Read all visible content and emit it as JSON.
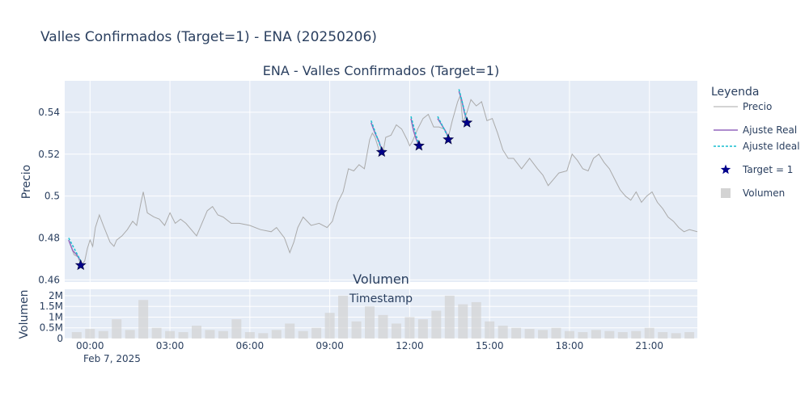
{
  "figure_title": "Valles Confirmados (Target=1) - ENA (20250206)",
  "colors": {
    "price": "#aaaaaa",
    "fit_real": "#9467bd",
    "fit_ideal": "#17becf",
    "target": "#00008b",
    "volume": "#d3d3d3",
    "plot_bg": "#e5ecf6",
    "grid": "#ffffff"
  },
  "legend": {
    "title": "Leyenda",
    "placement": "right",
    "items": [
      {
        "label": "Precio",
        "symbol": "line-gray"
      },
      {
        "label": "Ajuste Real",
        "symbol": "line-purple"
      },
      {
        "label": "Ajuste Ideal",
        "symbol": "dash-cyan"
      },
      {
        "label": "Target = 1",
        "symbol": "star-darkblue"
      },
      {
        "label": "Volumen",
        "symbol": "square-lightgray"
      }
    ]
  },
  "chart_data": [
    {
      "type": "line",
      "title": "ENA - Valles Confirmados (Target=1)",
      "xlabel": "",
      "ylabel": "Precio",
      "grid": true,
      "x_ticks": [
        "00:00",
        "03:00",
        "06:00",
        "09:00",
        "12:00",
        "15:00",
        "18:00",
        "21:00"
      ],
      "x_date_label": "Feb 7, 2025",
      "xlim_hours": [
        -0.95,
        22.8
      ],
      "ylim": [
        0.459,
        0.555
      ],
      "y_ticks": [
        0.46,
        0.48,
        0.5,
        0.52,
        0.54
      ],
      "y_tick_labels": [
        "0.46",
        "0.48",
        "0.5",
        "0.52",
        "0.54"
      ],
      "series": [
        {
          "name": "Precio",
          "x_hours": [
            -0.8,
            -0.6,
            -0.45,
            -0.35,
            -0.2,
            -0.1,
            0.0,
            0.1,
            0.2,
            0.35,
            0.5,
            0.75,
            0.9,
            1.0,
            1.2,
            1.4,
            1.6,
            1.75,
            1.9,
            2.0,
            2.15,
            2.4,
            2.6,
            2.8,
            3.0,
            3.2,
            3.4,
            3.6,
            3.8,
            4.0,
            4.2,
            4.4,
            4.6,
            4.8,
            5.0,
            5.3,
            5.6,
            6.0,
            6.4,
            6.8,
            7.0,
            7.3,
            7.5,
            7.65,
            7.8,
            8.0,
            8.3,
            8.6,
            8.9,
            9.1,
            9.3,
            9.5,
            9.7,
            9.9,
            10.1,
            10.3,
            10.5,
            10.6,
            10.7,
            10.85,
            11.0,
            11.1,
            11.3,
            11.5,
            11.7,
            11.9,
            12.0,
            12.1,
            12.3,
            12.5,
            12.7,
            12.9,
            13.1,
            13.3,
            13.45,
            13.6,
            13.8,
            13.9,
            14.0,
            14.15,
            14.3,
            14.5,
            14.7,
            14.9,
            15.1,
            15.3,
            15.5,
            15.7,
            15.9,
            16.2,
            16.5,
            16.8,
            17.0,
            17.2,
            17.4,
            17.6,
            17.9,
            18.1,
            18.3,
            18.5,
            18.7,
            18.9,
            19.1,
            19.3,
            19.5,
            19.7,
            19.9,
            20.1,
            20.3,
            20.5,
            20.7,
            20.9,
            21.1,
            21.3,
            21.5,
            21.7,
            21.9,
            22.1,
            22.3,
            22.5,
            22.8
          ],
          "y": [
            0.479,
            0.472,
            0.471,
            0.467,
            0.469,
            0.475,
            0.479,
            0.476,
            0.485,
            0.491,
            0.486,
            0.478,
            0.476,
            0.479,
            0.481,
            0.484,
            0.488,
            0.486,
            0.496,
            0.502,
            0.492,
            0.49,
            0.489,
            0.486,
            0.492,
            0.487,
            0.489,
            0.487,
            0.484,
            0.481,
            0.487,
            0.493,
            0.495,
            0.491,
            0.49,
            0.487,
            0.487,
            0.486,
            0.484,
            0.483,
            0.485,
            0.48,
            0.473,
            0.478,
            0.485,
            0.49,
            0.486,
            0.487,
            0.485,
            0.488,
            0.497,
            0.502,
            0.513,
            0.512,
            0.515,
            0.513,
            0.527,
            0.53,
            0.528,
            0.522,
            0.521,
            0.528,
            0.529,
            0.534,
            0.532,
            0.527,
            0.524,
            0.526,
            0.532,
            0.537,
            0.539,
            0.533,
            0.533,
            0.532,
            0.528,
            0.536,
            0.545,
            0.548,
            0.535,
            0.54,
            0.546,
            0.543,
            0.545,
            0.536,
            0.537,
            0.53,
            0.522,
            0.518,
            0.518,
            0.513,
            0.518,
            0.513,
            0.51,
            0.505,
            0.508,
            0.511,
            0.512,
            0.52,
            0.517,
            0.513,
            0.512,
            0.518,
            0.52,
            0.516,
            0.513,
            0.508,
            0.503,
            0.5,
            0.498,
            0.502,
            0.497,
            0.5,
            0.502,
            0.497,
            0.494,
            0.49,
            0.488,
            0.485,
            0.483,
            0.484,
            0.483
          ]
        },
        {
          "name": "Ajuste Real",
          "segments": [
            {
              "x_hours": [
                -0.8,
                -0.65,
                -0.5,
                -0.35
              ],
              "y": [
                0.479,
                0.474,
                0.472,
                0.469
              ]
            },
            {
              "x_hours": [
                10.55,
                10.7,
                10.85,
                10.95
              ],
              "y": [
                0.535,
                0.53,
                0.526,
                0.522
              ]
            },
            {
              "x_hours": [
                12.05,
                12.15,
                12.25,
                12.35
              ],
              "y": [
                0.537,
                0.531,
                0.527,
                0.524
              ]
            },
            {
              "x_hours": [
                13.05,
                13.2,
                13.35,
                13.45
              ],
              "y": [
                0.537,
                0.534,
                0.531,
                0.528
              ]
            },
            {
              "x_hours": [
                13.85,
                13.95,
                14.05,
                14.15
              ],
              "y": [
                0.55,
                0.546,
                0.54,
                0.536
              ]
            }
          ]
        },
        {
          "name": "Ajuste Ideal",
          "segments": [
            {
              "x_hours": [
                -0.8,
                -0.35
              ],
              "y": [
                0.48,
                0.469
              ]
            },
            {
              "x_hours": [
                10.55,
                10.95
              ],
              "y": [
                0.536,
                0.522
              ]
            },
            {
              "x_hours": [
                12.05,
                12.35
              ],
              "y": [
                0.538,
                0.524
              ]
            },
            {
              "x_hours": [
                13.05,
                13.45
              ],
              "y": [
                0.538,
                0.528
              ]
            },
            {
              "x_hours": [
                13.85,
                14.15
              ],
              "y": [
                0.551,
                0.536
              ]
            }
          ]
        },
        {
          "name": "Target = 1",
          "type": "scatter",
          "x_hours": [
            -0.35,
            10.95,
            12.35,
            13.45,
            14.15
          ],
          "y": [
            0.467,
            0.521,
            0.524,
            0.527,
            0.535
          ]
        }
      ]
    },
    {
      "type": "bar",
      "title": "Volumen",
      "xlabel": "Timestamp",
      "ylabel": "Volumen",
      "grid": true,
      "ylim": [
        0,
        2300000
      ],
      "y_ticks": [
        0,
        500000,
        1000000,
        1500000,
        2000000
      ],
      "y_tick_labels": [
        "0",
        "0.5M",
        "1M",
        "1.5M",
        "2M"
      ],
      "series": [
        {
          "name": "Volumen",
          "x_hours": [
            -0.5,
            0.0,
            0.5,
            1.0,
            1.5,
            2.0,
            2.5,
            3.0,
            3.5,
            4.0,
            4.5,
            5.0,
            5.5,
            6.0,
            6.5,
            7.0,
            7.5,
            8.0,
            8.5,
            9.0,
            9.5,
            10.0,
            10.5,
            11.0,
            11.5,
            12.0,
            12.5,
            13.0,
            13.5,
            14.0,
            14.5,
            15.0,
            15.5,
            16.0,
            16.5,
            17.0,
            17.5,
            18.0,
            18.5,
            19.0,
            19.5,
            20.0,
            20.5,
            21.0,
            21.5,
            22.0,
            22.5
          ],
          "values": [
            300000,
            450000,
            350000,
            900000,
            400000,
            1800000,
            500000,
            350000,
            300000,
            600000,
            400000,
            350000,
            900000,
            300000,
            250000,
            400000,
            700000,
            350000,
            500000,
            1200000,
            2000000,
            800000,
            1500000,
            1100000,
            700000,
            1000000,
            900000,
            1300000,
            2000000,
            1600000,
            1700000,
            800000,
            600000,
            500000,
            450000,
            400000,
            500000,
            350000,
            300000,
            400000,
            350000,
            300000,
            350000,
            500000,
            300000,
            250000,
            300000
          ]
        }
      ]
    }
  ]
}
